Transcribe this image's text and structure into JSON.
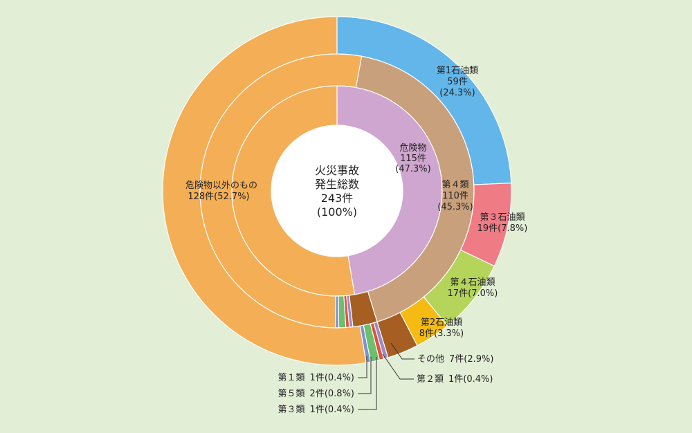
{
  "chart_data": {
    "type": "pie",
    "center_label": [
      "火災事故",
      "発生総数",
      "243件",
      "(100%)"
    ],
    "total": 243,
    "rings": [
      {
        "name": "",
        "slices": [
          {
            "label": "危険物",
            "count_label": "115件",
            "pct_label": "(47.3%)",
            "value": 115,
            "color": "#cfa6cf"
          },
          {
            "label": "",
            "count_label": "",
            "pct_label": "",
            "value": 128,
            "color": "#f4ae55"
          }
        ]
      },
      {
        "name": "",
        "slices": [
          {
            "label": "第４類",
            "count_label": "110件",
            "pct_label": "(45.3%)",
            "value": 110,
            "color": "#c9a07c"
          },
          {
            "label": "その他",
            "value": 7,
            "color": "#a65e22"
          },
          {
            "label": "第２類",
            "value": 1,
            "color": "#9a8cc4"
          },
          {
            "label": "第３類",
            "value": 1,
            "color": "#e0523f"
          },
          {
            "label": "第５類",
            "value": 2,
            "color": "#6cbf6c"
          },
          {
            "label": "第１類",
            "value": 1,
            "color": "#7b93cf"
          },
          {
            "label": "",
            "value": 128,
            "color": "#f4ae55"
          }
        ]
      },
      {
        "name": "",
        "slices": [
          {
            "label": "第1石油類",
            "count_label": "59件",
            "pct_label": "(24.3%)",
            "value": 59,
            "color": "#62b6ea"
          },
          {
            "label": "第３石油類",
            "count_label": "19件(7.8%)",
            "value": 19,
            "color": "#ef7b85"
          },
          {
            "label": "第４石油類",
            "count_label": "17件(7.0%)",
            "value": 17,
            "color": "#b4d45a"
          },
          {
            "label": "第2石油類",
            "count_label": "8件(3.3%)",
            "value": 8,
            "color": "#f5bb12"
          },
          {
            "label": "その他",
            "count_label": "7件(2.9%)",
            "value": 7,
            "color": "#a65e22"
          },
          {
            "label": "第２類",
            "count_label": "1件(0.4%)",
            "value": 1,
            "color": "#9a8cc4"
          },
          {
            "label": "第３類",
            "count_label": "1件(0.4%)",
            "value": 1,
            "color": "#e0523f"
          },
          {
            "label": "第５類",
            "count_label": "2件(0.8%)",
            "value": 2,
            "color": "#6cbf6c"
          },
          {
            "label": "第１類",
            "count_label": "1件(0.4%)",
            "value": 1,
            "color": "#7b93cf"
          },
          {
            "label": "危険物以外のもの",
            "count_label": "128件(52.7%)",
            "value": 128,
            "color": "#f4ae55"
          }
        ]
      }
    ]
  }
}
